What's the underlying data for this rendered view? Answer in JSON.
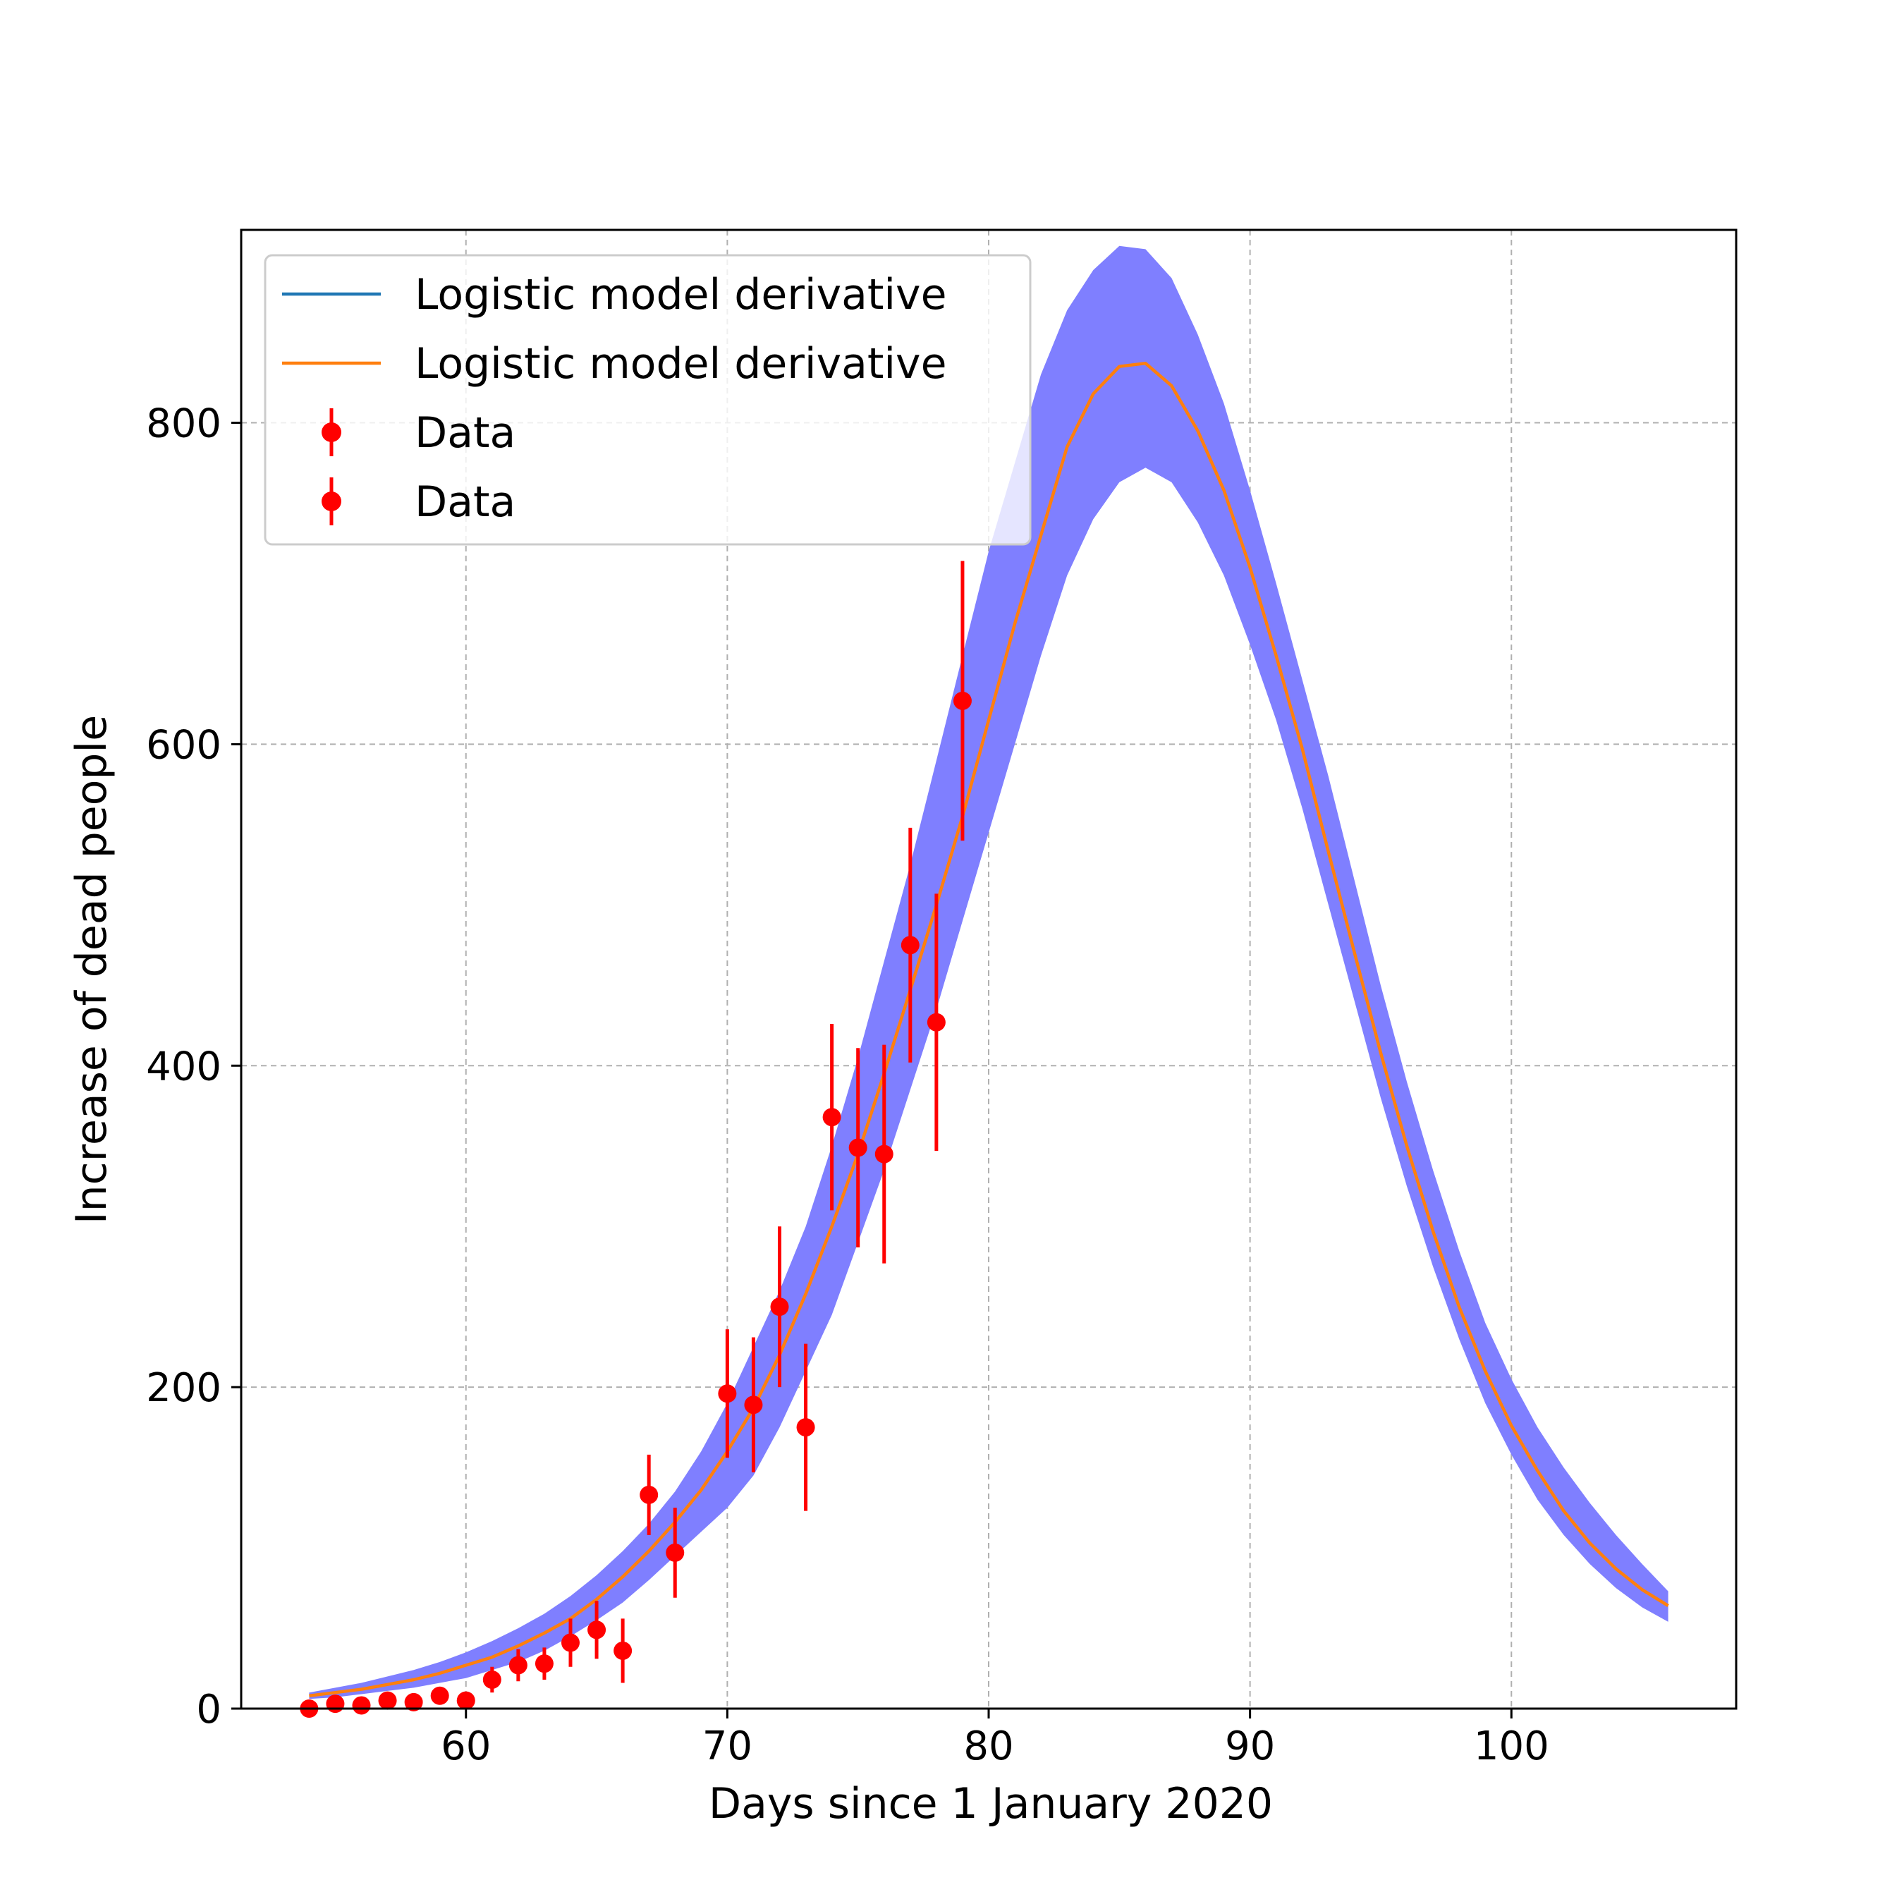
{
  "chart_data": {
    "type": "line",
    "xlabel": "Days since 1 January 2020",
    "ylabel": "Increase of dead people",
    "xlim": [
      51.4,
      108.6
    ],
    "ylim": [
      0,
      920
    ],
    "xticks": [
      60,
      70,
      80,
      90,
      100
    ],
    "yticks": [
      0,
      200,
      400,
      600,
      800
    ],
    "grid": true,
    "legend_position": "upper-left",
    "legend": [
      {
        "label": "Logistic model derivative",
        "kind": "line",
        "color": "#1f77b4"
      },
      {
        "label": "Logistic model derivative",
        "kind": "line",
        "color": "#ff7f0e"
      },
      {
        "label": "Data",
        "kind": "errorbar",
        "color": "#ff0000"
      },
      {
        "label": "Data",
        "kind": "errorbar",
        "color": "#ff0000"
      }
    ],
    "band": {
      "color": "#7f7fff",
      "x": [
        54,
        55,
        56,
        57,
        58,
        59,
        60,
        61,
        62,
        63,
        64,
        65,
        66,
        67,
        68,
        69,
        70,
        71,
        72,
        73,
        74,
        75,
        76,
        77,
        78,
        79,
        80,
        81,
        82,
        83,
        84,
        85,
        86,
        87,
        88,
        89,
        90,
        91,
        92,
        93,
        94,
        95,
        96,
        97,
        98,
        99,
        100,
        101,
        102,
        103,
        104,
        105,
        106
      ],
      "upper": [
        10,
        13,
        16,
        20,
        24,
        29,
        35,
        42,
        50,
        59,
        70,
        83,
        98,
        115,
        135,
        160,
        190,
        225,
        260,
        300,
        350,
        405,
        465,
        525,
        590,
        655,
        720,
        775,
        830,
        870,
        895,
        910,
        908,
        890,
        855,
        812,
        758,
        700,
        640,
        580,
        515,
        450,
        390,
        335,
        285,
        240,
        205,
        175,
        150,
        128,
        108,
        90,
        73
      ],
      "lower": [
        6,
        7,
        9,
        11,
        13,
        16,
        19,
        24,
        29,
        36,
        45,
        55,
        66,
        80,
        95,
        110,
        125,
        145,
        175,
        210,
        245,
        290,
        335,
        385,
        435,
        490,
        545,
        600,
        655,
        705,
        740,
        763,
        772,
        763,
        738,
        705,
        662,
        615,
        560,
        500,
        440,
        380,
        325,
        275,
        230,
        190,
        158,
        130,
        108,
        90,
        75,
        63,
        54
      ]
    },
    "series": [
      {
        "color": "#ff7f0e",
        "x": [
          54,
          55,
          56,
          57,
          58,
          59,
          60,
          61,
          62,
          63,
          64,
          65,
          66,
          67,
          68,
          69,
          70,
          71,
          72,
          73,
          74,
          75,
          76,
          77,
          78,
          79,
          80,
          81,
          82,
          83,
          84,
          85,
          86,
          87,
          88,
          89,
          90,
          91,
          92,
          93,
          94,
          95,
          96,
          97,
          98,
          99,
          100,
          101,
          102,
          103,
          104,
          105,
          106
        ],
        "y": [
          8,
          10,
          12,
          15,
          18,
          22,
          27,
          32,
          39,
          47,
          56,
          68,
          82,
          98,
          116,
          136,
          160,
          187,
          220,
          258,
          300,
          345,
          395,
          447,
          500,
          555,
          615,
          675,
          730,
          785,
          818,
          835,
          837,
          823,
          795,
          758,
          710,
          655,
          597,
          533,
          470,
          408,
          350,
          297,
          250,
          210,
          176,
          148,
          123,
          103,
          87,
          74,
          64
        ]
      }
    ],
    "points": {
      "color": "#ff0000",
      "x": [
        54,
        55,
        56,
        57,
        58,
        59,
        60,
        61,
        62,
        63,
        64,
        65,
        66,
        67,
        68,
        70,
        71,
        72,
        73,
        74,
        75,
        76,
        77,
        78,
        79
      ],
      "y": [
        0,
        3,
        2,
        5,
        4,
        8,
        5,
        18,
        27,
        28,
        41,
        49,
        36,
        133,
        97,
        196,
        189,
        250,
        175,
        368,
        349,
        345,
        475,
        427,
        627
      ],
      "err": [
        0,
        1,
        1,
        2,
        1,
        2,
        2,
        8,
        10,
        10,
        15,
        18,
        20,
        25,
        28,
        40,
        42,
        50,
        52,
        58,
        62,
        68,
        73,
        80,
        87
      ]
    }
  }
}
